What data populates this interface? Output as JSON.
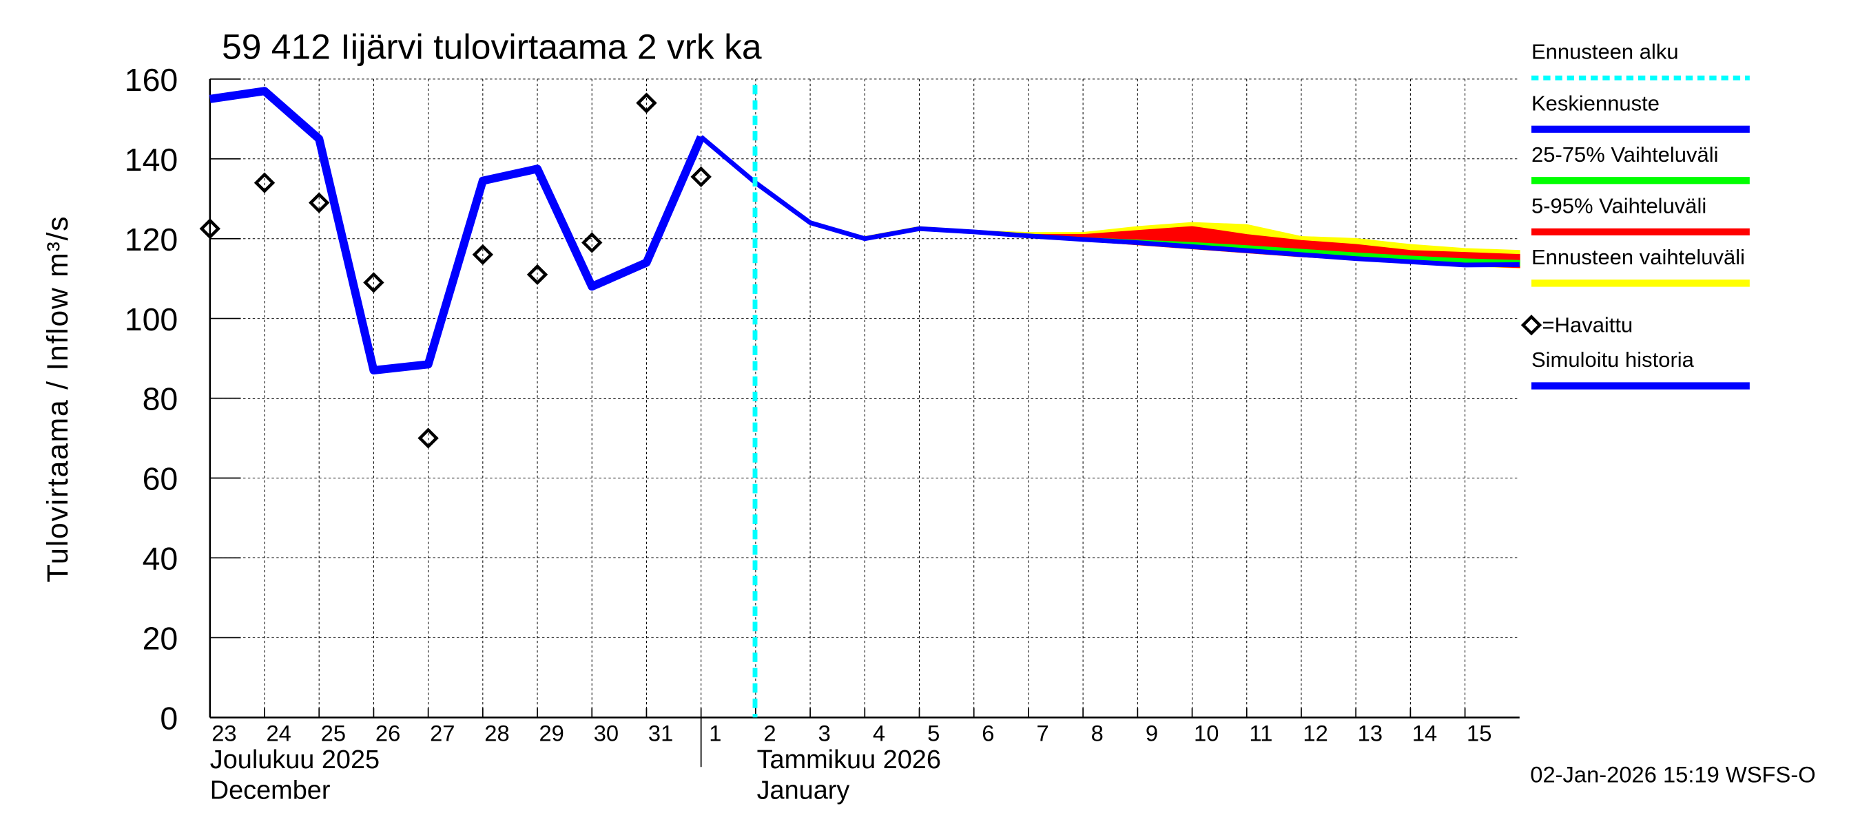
{
  "chart_data": {
    "type": "line",
    "title": "59 412 Iijärvi tulovirtaama 2 vrk ka",
    "ylabel": "Tulovirtaama / Inflow    m³/s",
    "ylim": [
      0,
      160
    ],
    "yticks": [
      0,
      20,
      40,
      60,
      80,
      100,
      120,
      140,
      160
    ],
    "grid": true,
    "legend_position": "right",
    "x_day_labels": [
      "23",
      "24",
      "25",
      "26",
      "27",
      "28",
      "29",
      "30",
      "31",
      "1",
      "2",
      "3",
      "4",
      "5",
      "6",
      "7",
      "8",
      "9",
      "10",
      "11",
      "12",
      "13",
      "14",
      "15"
    ],
    "x_month_labels": [
      {
        "fi": "Joulukuu  2025",
        "en": "December"
      },
      {
        "fi": "Tammikuu  2026",
        "en": "January"
      }
    ],
    "x_range_days": [
      0,
      24
    ],
    "forecast_start_day": 10,
    "simulated_history": {
      "name": "Simuloitu historia",
      "color": "#0000ff",
      "days": [
        0,
        1,
        2,
        3,
        4,
        5,
        6,
        7,
        8,
        9
      ],
      "values": [
        155,
        157,
        145,
        87,
        88.5,
        134.5,
        137.5,
        108,
        114,
        145.5
      ]
    },
    "median_forecast": {
      "name": "Keskiennuste",
      "color": "#0000ff",
      "days": [
        9,
        10,
        11,
        12,
        13,
        14,
        15,
        16,
        17,
        18,
        19,
        20,
        21,
        22,
        23,
        24
      ],
      "values": [
        145.5,
        134,
        124,
        120,
        122.5,
        121.7,
        120.7,
        119.8,
        119,
        118,
        117,
        116,
        115,
        114.2,
        113.4,
        113.5
      ]
    },
    "band_5_95": {
      "name": "5-95% Vaihteluväli",
      "color": "#ff0000",
      "days": [
        12,
        13,
        14,
        15,
        16,
        17,
        18,
        19,
        20,
        21,
        22,
        23,
        24
      ],
      "upper": [
        120,
        122.5,
        121.7,
        121,
        121,
        122,
        123,
        121,
        119.5,
        118.5,
        117,
        116.5,
        116
      ],
      "lower": [
        120,
        122.5,
        121.7,
        120.5,
        119.5,
        118.5,
        117.5,
        116.5,
        115.5,
        114.8,
        114,
        113.3,
        112.8
      ]
    },
    "band_25_75": {
      "name": "25-75% Vaihteluväli",
      "color": "#00ff00",
      "days": [
        12,
        13,
        14,
        15,
        16,
        17,
        18,
        19,
        20,
        21,
        22,
        23,
        24
      ],
      "upper": [
        120,
        122.5,
        121.7,
        120.8,
        120.2,
        119.6,
        119,
        118.2,
        117.3,
        116.4,
        115.6,
        114.9,
        114.5
      ],
      "lower": [
        120,
        122.5,
        121.7,
        120.6,
        119.8,
        119,
        118,
        117,
        116,
        115,
        114.2,
        113.4,
        113.2
      ]
    },
    "band_total": {
      "name": "Ennusteen vaihteluväli",
      "color": "#ffff00",
      "days": [
        12,
        13,
        14,
        15,
        16,
        17,
        18,
        19,
        20,
        21,
        22,
        23,
        24
      ],
      "upper": [
        120.5,
        123,
        122,
        121.5,
        121.5,
        123,
        124,
        123.5,
        120.5,
        120,
        118.5,
        117.5,
        117
      ],
      "lower": [
        120,
        122.5,
        121.7,
        120.5,
        119.5,
        118.5,
        117.5,
        116.5,
        115.5,
        114.7,
        113.9,
        113.2,
        112.7
      ]
    },
    "observed": {
      "name": "=Havaittu",
      "days": [
        0,
        1,
        2,
        3,
        4,
        5,
        6,
        7,
        8,
        9
      ],
      "values": [
        122.5,
        134,
        129,
        109,
        70,
        116,
        111,
        119,
        154,
        135.5
      ]
    }
  },
  "legend": [
    {
      "label": "Ennusteen alku",
      "color": "#00ffff",
      "style": "dashed"
    },
    {
      "label": "Keskiennuste",
      "color": "#0000ff",
      "style": "solid"
    },
    {
      "label": "25-75% Vaihteluväli",
      "color": "#00ff00",
      "style": "solid"
    },
    {
      "label": "5-95% Vaihteluväli",
      "color": "#ff0000",
      "style": "solid"
    },
    {
      "label": "Ennusteen vaihteluväli",
      "color": "#ffff00",
      "style": "solid"
    },
    {
      "label": "=Havaittu",
      "color": "#000000",
      "style": "diamond"
    },
    {
      "label": "Simuloitu historia",
      "color": "#0000ff",
      "style": "solid"
    }
  ],
  "footer": "02-Jan-2026 15:19 WSFS-O"
}
